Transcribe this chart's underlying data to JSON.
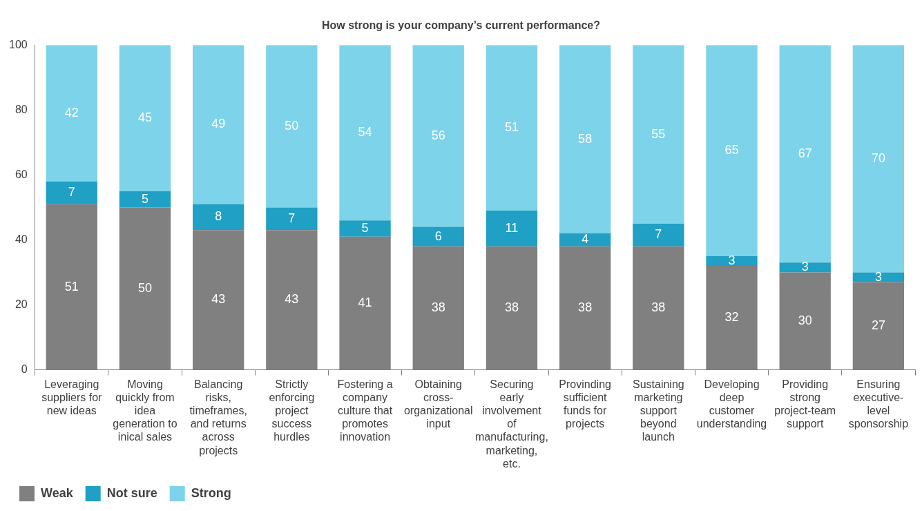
{
  "chart_data": {
    "type": "bar",
    "title": "How strong is your company’s current performance?",
    "stacked": true,
    "data_labels": true,
    "legend": "bottom left",
    "grid": false,
    "ylim": [
      0,
      100
    ],
    "yticks": [
      0,
      20,
      40,
      60,
      80,
      100
    ],
    "categories": [
      "Leveraging suppliers for new ideas",
      "Moving quickly from idea generation to inical sales",
      "Balancing risks, timeframes, and returns across projects",
      "Strictly enforcing project success hurdles",
      "Fostering a company culture that promotes innovation",
      "Obtaining cross-organizational input",
      "Securing early involvement of manufacturing, marketing, etc.",
      "Provinding sufficient funds for projects",
      "Sustaining marketing support beyond launch",
      "Developing deep customer understanding",
      "Providing strong project-team support",
      "Ensuring executive-level sponsorship"
    ],
    "series": [
      {
        "name": "Weak",
        "color": "#808080",
        "values": [
          51,
          50,
          43,
          43,
          41,
          38,
          38,
          38,
          38,
          32,
          30,
          27
        ]
      },
      {
        "name": "Not sure",
        "color": "#1fa0c4",
        "values": [
          7,
          5,
          8,
          7,
          5,
          6,
          11,
          4,
          7,
          3,
          3,
          3
        ]
      },
      {
        "name": "Strong",
        "color": "#7dd3ea",
        "values": [
          42,
          45,
          49,
          50,
          54,
          56,
          51,
          58,
          55,
          65,
          67,
          70
        ]
      }
    ]
  }
}
